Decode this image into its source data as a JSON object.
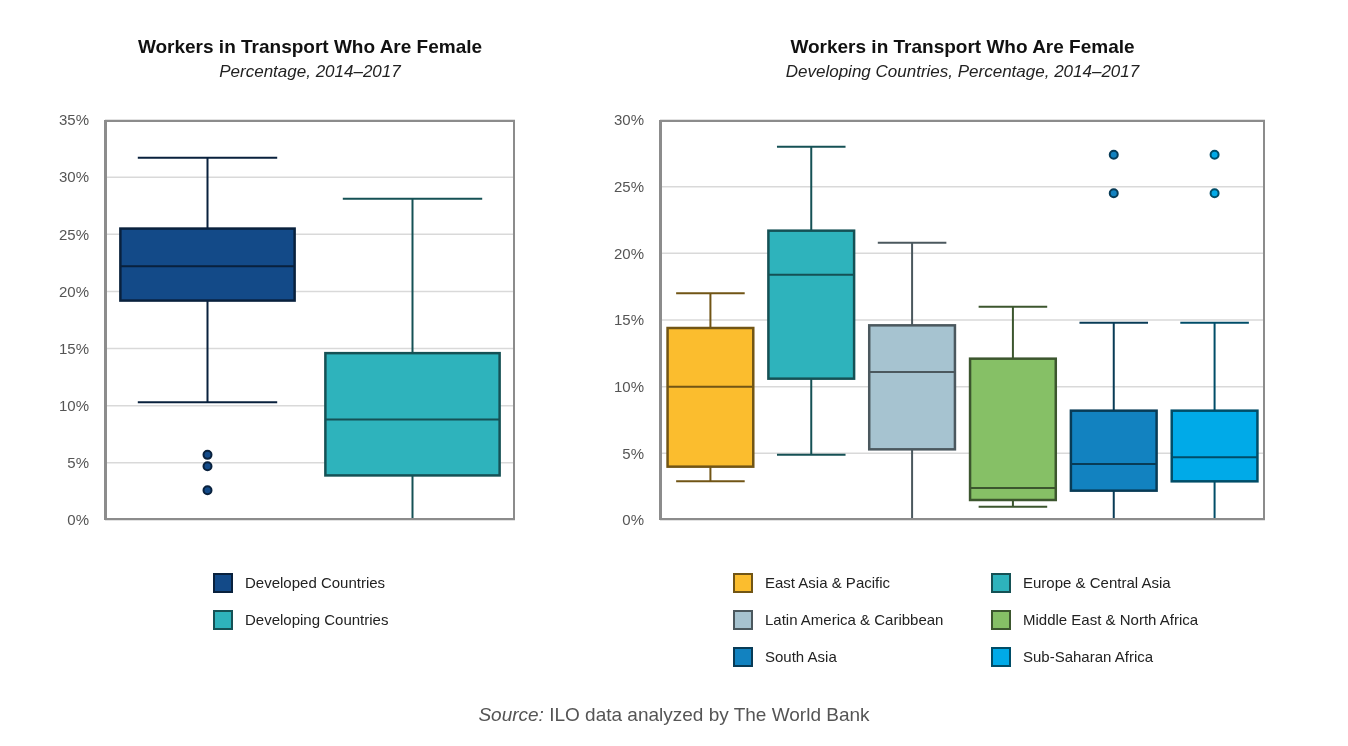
{
  "chart_data": [
    {
      "type": "box",
      "title": "Workers in Transport Who Are Female",
      "subtitle": "Percentage, 2014–2017",
      "categories": [
        null
      ],
      "ylim": [
        0,
        35
      ],
      "yticks": [
        {
          "value": 0,
          "label": "0%"
        },
        {
          "value": 5,
          "label": "5%"
        },
        {
          "value": 10,
          "label": "10%"
        },
        {
          "value": 15,
          "label": "15%"
        },
        {
          "value": 20,
          "label": "20%"
        },
        {
          "value": 25,
          "label": "25%"
        },
        {
          "value": 30,
          "label": "30%"
        },
        {
          "value": 35,
          "label": "35%"
        }
      ],
      "grid": "y",
      "legend": "bottom",
      "series": [
        {
          "name": "Developed Countries",
          "color": "#134a88",
          "boxes": [
            {
              "low": 10.3,
              "q1": 19.2,
              "median": 22.2,
              "q3": 25.5,
              "high": 31.7,
              "outliers": [
                5.7,
                4.7,
                2.6
              ]
            }
          ]
        },
        {
          "name": "Developing Countries",
          "color": "#2eb3bc",
          "boxes": [
            {
              "low": 0,
              "q1": 3.9,
              "median": 8.8,
              "q3": 14.6,
              "high": 28.1
            }
          ]
        }
      ]
    },
    {
      "type": "box",
      "title": "Workers in Transport Who Are Female",
      "subtitle": "Developing Countries, Percentage, 2014–2017",
      "categories": [
        null
      ],
      "ylim": [
        0,
        30
      ],
      "yticks": [
        {
          "value": 0,
          "label": "0%"
        },
        {
          "value": 5,
          "label": "5%"
        },
        {
          "value": 10,
          "label": "10%"
        },
        {
          "value": 15,
          "label": "15%"
        },
        {
          "value": 20,
          "label": "20%"
        },
        {
          "value": 25,
          "label": "25%"
        },
        {
          "value": 30,
          "label": "30%"
        }
      ],
      "grid": "y",
      "legend": "bottom",
      "annotations": [
        "Source: ILO data analyzed by The World Bank"
      ],
      "series": [
        {
          "name": "East Asia & Pacific",
          "color": "#fbbd2e",
          "boxes": [
            {
              "low": 2.9,
              "q1": 4.0,
              "median": 10.0,
              "q3": 14.4,
              "high": 17.0
            }
          ]
        },
        {
          "name": "Europe & Central Asia",
          "color": "#2eb3bc",
          "boxes": [
            {
              "low": 4.9,
              "q1": 10.6,
              "median": 18.4,
              "q3": 21.7,
              "high": 28.0
            }
          ]
        },
        {
          "name": "Latin America & Caribbean",
          "color": "#a6c3d0",
          "boxes": [
            {
              "low": 0,
              "q1": 5.3,
              "median": 11.1,
              "q3": 14.6,
              "high": 20.8
            }
          ]
        },
        {
          "name": "Middle East & North Africa",
          "color": "#86c066",
          "boxes": [
            {
              "low": 1.0,
              "q1": 1.5,
              "median": 2.4,
              "q3": 12.1,
              "high": 16.0
            }
          ]
        },
        {
          "name": "South Asia",
          "color": "#1282c0",
          "boxes": [
            {
              "low": 0,
              "q1": 2.2,
              "median": 4.2,
              "q3": 8.2,
              "high": 14.8,
              "outliers": [
                27.4,
                24.5
              ]
            }
          ]
        },
        {
          "name": "Sub-Saharan Africa",
          "color": "#00aae8",
          "boxes": [
            {
              "low": 0,
              "q1": 2.9,
              "median": 4.7,
              "q3": 8.2,
              "high": 14.8,
              "outliers": [
                27.4,
                24.5
              ]
            }
          ]
        }
      ]
    }
  ]
}
